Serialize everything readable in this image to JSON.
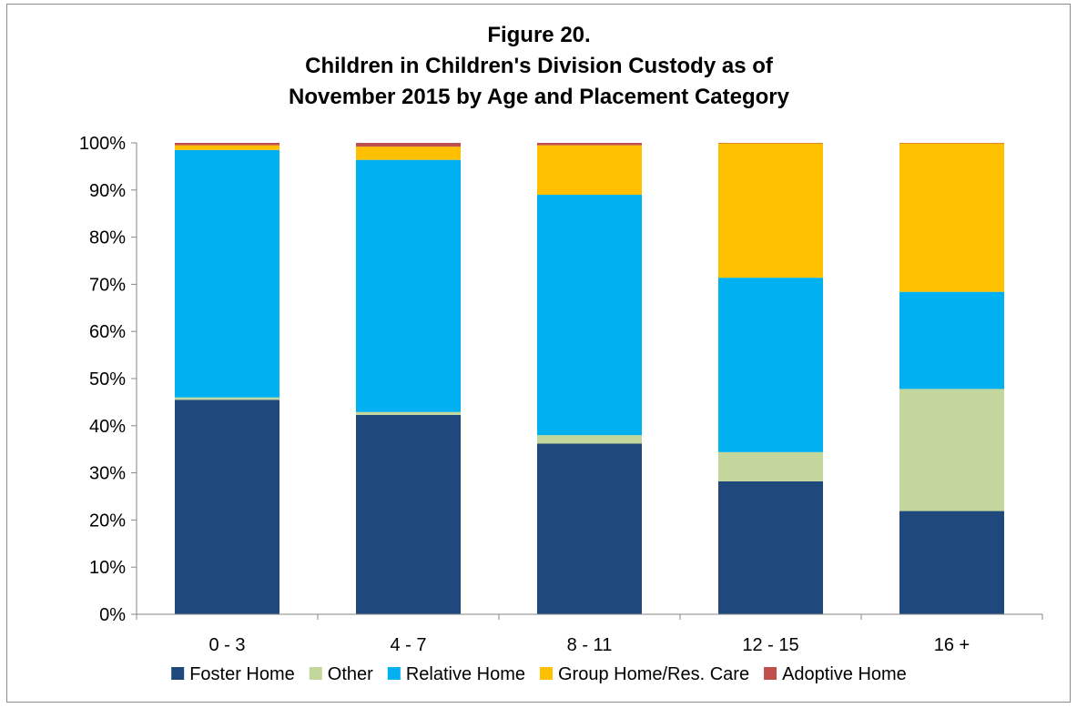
{
  "chart_data": {
    "type": "bar",
    "stacked": true,
    "title": [
      "Figure 20.",
      "Children in Children's Division Custody as of",
      "November 2015 by Age and Placement Category"
    ],
    "xlabel": "",
    "ylabel": "",
    "ylim": [
      0,
      100
    ],
    "y_ticks": [
      "0%",
      "10%",
      "20%",
      "30%",
      "40%",
      "50%",
      "60%",
      "70%",
      "80%",
      "90%",
      "100%"
    ],
    "categories": [
      "0 - 3",
      "4 - 7",
      "8 - 11",
      "12 - 15",
      "16 +"
    ],
    "grid": false,
    "legend_position": "bottom",
    "series": [
      {
        "name": "Foster Home",
        "color": "#1f497d",
        "values": [
          45.5,
          42.3,
          36.2,
          28.2,
          21.9
        ]
      },
      {
        "name": "Other",
        "color": "#c3d69b",
        "values": [
          0.5,
          0.6,
          1.8,
          6.2,
          25.9
        ]
      },
      {
        "name": "Relative Home",
        "color": "#00b0f0",
        "values": [
          52.5,
          53.5,
          51.0,
          37.0,
          20.6
        ]
      },
      {
        "name": "Group Home/Res. Care",
        "color": "#ffc000",
        "values": [
          1.0,
          2.8,
          10.5,
          28.5,
          31.5
        ]
      },
      {
        "name": "Adoptive Home",
        "color": "#c0504d",
        "values": [
          0.5,
          0.8,
          0.5,
          0.1,
          0.1
        ]
      }
    ]
  }
}
